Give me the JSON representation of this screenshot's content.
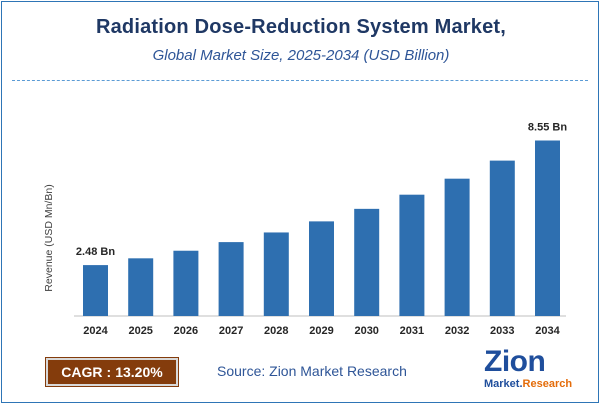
{
  "title": "Radiation Dose-Reduction System Market,",
  "subtitle": "Global Market Size, 2025-2034 (USD Billion)",
  "cagr": {
    "label": "CAGR",
    "separator": ":",
    "value": "13.20%"
  },
  "source": "Source: Zion Market Research",
  "logo": {
    "main": "Zion",
    "sub_left": "Market.",
    "sub_right": "Research"
  },
  "colors": {
    "bar": "#2e6fb0",
    "title": "#1f3864",
    "subtitle": "#2e5597",
    "cagr_bg": "#843c0c",
    "border": "#2e75b6"
  },
  "chart_data": {
    "type": "bar",
    "categories": [
      "2024",
      "2025",
      "2026",
      "2027",
      "2028",
      "2029",
      "2030",
      "2031",
      "2032",
      "2033",
      "2034"
    ],
    "values": [
      2.48,
      2.81,
      3.18,
      3.6,
      4.07,
      4.61,
      5.22,
      5.91,
      6.69,
      7.57,
      8.55
    ],
    "data_labels": [
      "2.48 Bn",
      "",
      "",
      "",
      "",
      "",
      "",
      "",
      "",
      "",
      "8.55 Bn"
    ],
    "ylabel": "Revenue (USD Mn/Bn)",
    "xlabel": "",
    "ylim": [
      0,
      9.5
    ],
    "grid": false,
    "legend": "none"
  }
}
